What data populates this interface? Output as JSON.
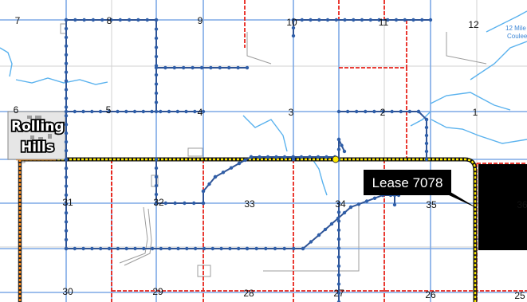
{
  "map": {
    "town": {
      "line1": "Rolling",
      "line2": "Hills"
    },
    "lease_callout": "Lease 7078",
    "water_feature_label": {
      "line1": "12 Mile",
      "line2": "Coulee"
    },
    "sections": [
      {
        "id": "s7",
        "label": "7"
      },
      {
        "id": "s8",
        "label": "8"
      },
      {
        "id": "s9",
        "label": "9"
      },
      {
        "id": "s10",
        "label": "10"
      },
      {
        "id": "s11",
        "label": "11"
      },
      {
        "id": "s12",
        "label": "12"
      },
      {
        "id": "s6",
        "label": "6"
      },
      {
        "id": "s5",
        "label": "5"
      },
      {
        "id": "s4",
        "label": "4"
      },
      {
        "id": "s3",
        "label": "3"
      },
      {
        "id": "s2",
        "label": "2"
      },
      {
        "id": "s1",
        "label": "1"
      },
      {
        "id": "s31",
        "label": "31"
      },
      {
        "id": "s32",
        "label": "32"
      },
      {
        "id": "s33",
        "label": "33"
      },
      {
        "id": "s34",
        "label": "34"
      },
      {
        "id": "s35",
        "label": "35"
      },
      {
        "id": "s36",
        "label": "36"
      },
      {
        "id": "s30",
        "label": "30"
      },
      {
        "id": "s29",
        "label": "29"
      },
      {
        "id": "s28",
        "label": "28"
      },
      {
        "id": "s27",
        "label": "27"
      },
      {
        "id": "s26",
        "label": "26"
      },
      {
        "id": "s25",
        "label": "25"
      }
    ],
    "colors": {
      "road": "#7da9e6",
      "boundary_red": "#e8241c",
      "pipeline": "#2f5496",
      "pipeline_node": "#2f5ea8",
      "highway_yellow": "#ffea00",
      "orange_route": "#ff8c1a",
      "water": "#5ab2ee",
      "lease_fill": "#000000",
      "grid": "#cfcfcf"
    }
  }
}
